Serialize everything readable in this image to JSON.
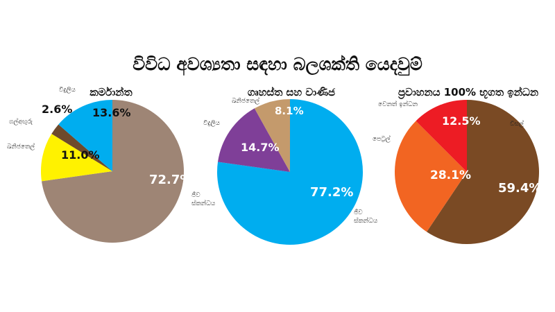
{
  "title": "විවිධ අවශ්‍යතා සඳහා බලශක්ති යෙදවුම්",
  "chart_data": [
    {
      "type": "pie",
      "title": "කර්මාන්ත",
      "slices": [
        {
          "label": "ජීව ස්කන්ධය",
          "value": 72.7,
          "display": "72.7%",
          "color": "#9e8575",
          "text_color": "#ffffff"
        },
        {
          "label": "ඛනිජතෙල්",
          "value": 11.0,
          "display": "11.0%",
          "color": "#fff200",
          "text_color": "#111111"
        },
        {
          "label": "ගල්අඟුරු",
          "value": 2.6,
          "display": "2.6%",
          "color": "#6e4a2c",
          "text_color": "#111111"
        },
        {
          "label": "විදුලිය",
          "value": 13.6,
          "display": "13.6%",
          "color": "#00adef",
          "text_color": "#111111"
        }
      ]
    },
    {
      "type": "pie",
      "title": "ගෘහස්ත සහ වාණිජ",
      "slices": [
        {
          "label": "ජීව ස්කන්ධය",
          "value": 77.2,
          "display": "77.2%",
          "color": "#00adef",
          "text_color": "#ffffff"
        },
        {
          "label": "විදුලිය",
          "value": 14.7,
          "display": "14.7%",
          "color": "#7f3f98",
          "text_color": "#ffffff"
        },
        {
          "label": "ඛනිජතෙල්",
          "value": 8.1,
          "display": "8.1%",
          "color": "#c49a6c",
          "text_color": "#ffffff"
        }
      ]
    },
    {
      "type": "pie",
      "title": "ප්‍රවාහනය 100% භූගත ඉන්ධන",
      "slices": [
        {
          "label": "ඩීසල්",
          "value": 59.4,
          "display": "59.4%",
          "color": "#7a4a24",
          "text_color": "#ffffff"
        },
        {
          "label": "පෙට්‍රල්",
          "value": 28.1,
          "display": "28.1%",
          "color": "#f26522",
          "text_color": "#ffffff"
        },
        {
          "label": "වෙනත් ඉන්ධන",
          "value": 12.5,
          "display": "12.5%",
          "color": "#ed1c24",
          "text_color": "#ffffff"
        }
      ]
    }
  ]
}
